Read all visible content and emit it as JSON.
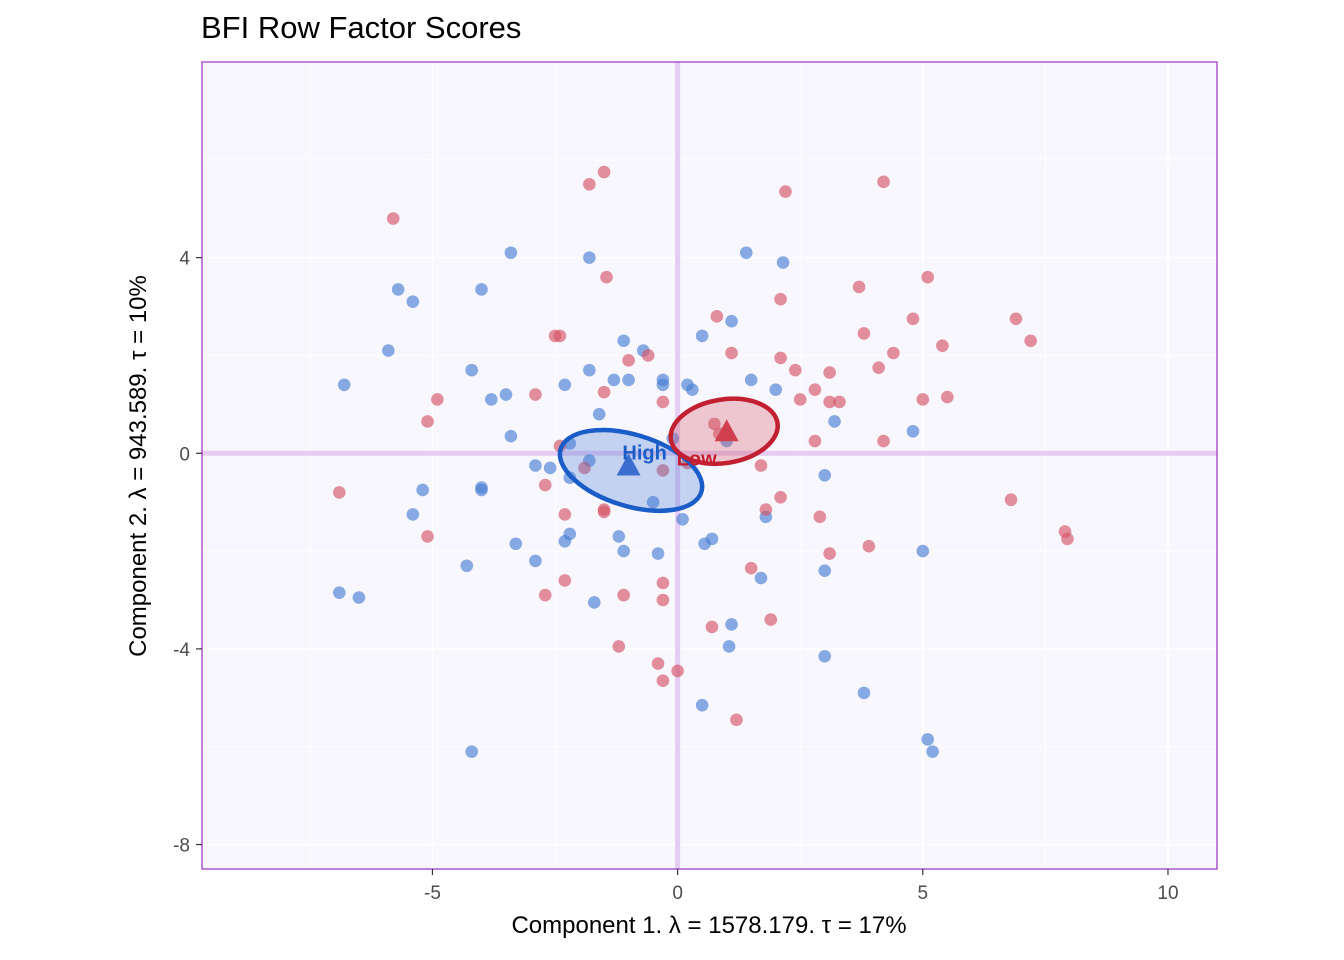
{
  "chart_data": {
    "type": "scatter",
    "title": "BFI Row Factor Scores",
    "xlabel": "Component 1.   λ = 1578.179.  τ = 17%",
    "ylabel": "Component 2.   λ = 943.589.  τ = 10%",
    "xlim": [
      -9.7,
      11.0
    ],
    "ylim": [
      -8.5,
      8.0
    ],
    "x_ticks": [
      -5,
      0,
      5,
      10
    ],
    "x_tick_labels": [
      "-5",
      "0",
      "5",
      "10"
    ],
    "y_ticks": [
      -8,
      -4,
      0,
      4
    ],
    "y_tick_labels": [
      "-8",
      "-4",
      "0",
      "4"
    ],
    "grid": true,
    "legend": "none",
    "colors": {
      "panel_background": "#f8f7fe",
      "panel_border": "#9b30c0",
      "origin_lines": "#e6ccf2",
      "gridlines": "#ffffff"
    },
    "series": [
      {
        "name": "High",
        "color": "#4a7fd4",
        "mean": {
          "x": -1.0,
          "y": -0.25
        },
        "ellipse": {
          "cx": -0.95,
          "cy": -0.35,
          "rx": 1.5,
          "ry": 0.73,
          "angle_deg": 17
        },
        "points": [
          [
            -6.8,
            1.4
          ],
          [
            -5.9,
            2.1
          ],
          [
            -5.7,
            3.35
          ],
          [
            -5.4,
            3.1
          ],
          [
            -4.2,
            1.7
          ],
          [
            -4.0,
            3.35
          ],
          [
            -3.4,
            4.1
          ],
          [
            -3.8,
            1.1
          ],
          [
            -3.5,
            1.2
          ],
          [
            -3.4,
            0.35
          ],
          [
            -1.8,
            4.0
          ],
          [
            -1.1,
            2.3
          ],
          [
            -0.7,
            2.1
          ],
          [
            -1.3,
            1.5
          ],
          [
            -1.0,
            1.5
          ],
          [
            -0.3,
            1.4
          ],
          [
            -0.3,
            1.5
          ],
          [
            -1.8,
            1.7
          ],
          [
            -2.3,
            1.4
          ],
          [
            -1.6,
            0.8
          ],
          [
            0.2,
            1.4
          ],
          [
            0.3,
            1.3
          ],
          [
            0.5,
            2.4
          ],
          [
            1.1,
            2.7
          ],
          [
            1.4,
            4.1
          ],
          [
            2.15,
            3.9
          ],
          [
            1.5,
            1.5
          ],
          [
            2.0,
            1.3
          ],
          [
            3.2,
            0.65
          ],
          [
            4.8,
            0.45
          ],
          [
            -2.2,
            0.2
          ],
          [
            -2.9,
            -0.25
          ],
          [
            -2.6,
            -0.3
          ],
          [
            -2.2,
            -0.5
          ],
          [
            -1.8,
            -0.15
          ],
          [
            -0.5,
            -1.0
          ],
          [
            0.1,
            -1.35
          ],
          [
            -0.1,
            0.3
          ],
          [
            1.0,
            0.25
          ],
          [
            1.8,
            -1.3
          ],
          [
            3.0,
            -0.45
          ],
          [
            -5.2,
            -0.75
          ],
          [
            -4.0,
            -0.7
          ],
          [
            -4.0,
            -0.75
          ],
          [
            -5.4,
            -1.25
          ],
          [
            -3.3,
            -1.85
          ],
          [
            -2.9,
            -2.2
          ],
          [
            -2.3,
            -1.8
          ],
          [
            -2.2,
            -1.65
          ],
          [
            -1.2,
            -1.7
          ],
          [
            -1.1,
            -2.0
          ],
          [
            -0.4,
            -2.05
          ],
          [
            0.55,
            -1.85
          ],
          [
            0.7,
            -1.75
          ],
          [
            -4.3,
            -2.3
          ],
          [
            -1.7,
            -3.05
          ],
          [
            1.7,
            -2.55
          ],
          [
            3.0,
            -2.4
          ],
          [
            5.0,
            -2.0
          ],
          [
            -6.9,
            -2.85
          ],
          [
            -6.5,
            -2.95
          ],
          [
            1.1,
            -3.5
          ],
          [
            1.05,
            -3.95
          ],
          [
            3.0,
            -4.15
          ],
          [
            3.8,
            -4.9
          ],
          [
            0.5,
            -5.15
          ],
          [
            -4.2,
            -6.1
          ],
          [
            5.1,
            -5.85
          ],
          [
            5.2,
            -6.1
          ]
        ]
      },
      {
        "name": "Low",
        "color": "#d45565",
        "mean": {
          "x": 1.0,
          "y": 0.45
        },
        "ellipse": {
          "cx": 0.95,
          "cy": 0.45,
          "rx": 1.1,
          "ry": 0.65,
          "angle_deg": -9
        },
        "points": [
          [
            -5.8,
            4.8
          ],
          [
            -1.8,
            5.5
          ],
          [
            -1.5,
            5.75
          ],
          [
            -1.45,
            3.6
          ],
          [
            2.2,
            5.35
          ],
          [
            4.2,
            5.55
          ],
          [
            2.1,
            3.15
          ],
          [
            3.7,
            3.4
          ],
          [
            5.1,
            3.6
          ],
          [
            4.8,
            2.75
          ],
          [
            6.9,
            2.75
          ],
          [
            7.2,
            2.3
          ],
          [
            3.8,
            2.45
          ],
          [
            5.4,
            2.2
          ],
          [
            4.4,
            2.05
          ],
          [
            1.1,
            2.05
          ],
          [
            0.8,
            2.8
          ],
          [
            2.1,
            1.95
          ],
          [
            3.1,
            1.65
          ],
          [
            4.1,
            1.75
          ],
          [
            2.4,
            1.7
          ],
          [
            2.8,
            1.3
          ],
          [
            2.5,
            1.1
          ],
          [
            3.1,
            1.05
          ],
          [
            3.3,
            1.05
          ],
          [
            5.0,
            1.1
          ],
          [
            5.5,
            1.15
          ],
          [
            2.8,
            0.25
          ],
          [
            4.2,
            0.25
          ],
          [
            -2.5,
            2.4
          ],
          [
            -2.4,
            2.4
          ],
          [
            -1.0,
            1.9
          ],
          [
            -0.6,
            2.0
          ],
          [
            -1.5,
            1.25
          ],
          [
            -0.3,
            1.05
          ],
          [
            -4.9,
            1.1
          ],
          [
            -2.9,
            1.2
          ],
          [
            -5.1,
            0.65
          ],
          [
            -2.4,
            0.15
          ],
          [
            -2.7,
            -0.65
          ],
          [
            -1.9,
            -0.3
          ],
          [
            -0.3,
            -0.35
          ],
          [
            0.2,
            -0.2
          ],
          [
            1.7,
            -0.25
          ],
          [
            -6.9,
            -0.8
          ],
          [
            -2.3,
            -1.25
          ],
          [
            -1.5,
            -1.15
          ],
          [
            -1.5,
            -1.2
          ],
          [
            1.8,
            -1.15
          ],
          [
            2.1,
            -0.9
          ],
          [
            2.9,
            -1.3
          ],
          [
            6.8,
            -0.95
          ],
          [
            7.9,
            -1.6
          ],
          [
            7.95,
            -1.75
          ],
          [
            -5.1,
            -1.7
          ],
          [
            3.1,
            -2.05
          ],
          [
            3.9,
            -1.9
          ],
          [
            1.5,
            -2.35
          ],
          [
            -2.3,
            -2.6
          ],
          [
            -0.3,
            -2.65
          ],
          [
            -2.7,
            -2.9
          ],
          [
            -1.1,
            -2.9
          ],
          [
            -0.3,
            -3.0
          ],
          [
            0.7,
            -3.55
          ],
          [
            1.9,
            -3.4
          ],
          [
            -1.2,
            -3.95
          ],
          [
            -0.4,
            -4.3
          ],
          [
            0.0,
            -4.45
          ],
          [
            -0.3,
            -4.65
          ],
          [
            1.2,
            -5.45
          ],
          [
            0.75,
            0.6
          ],
          [
            0.85,
            0.4
          ]
        ]
      }
    ]
  }
}
